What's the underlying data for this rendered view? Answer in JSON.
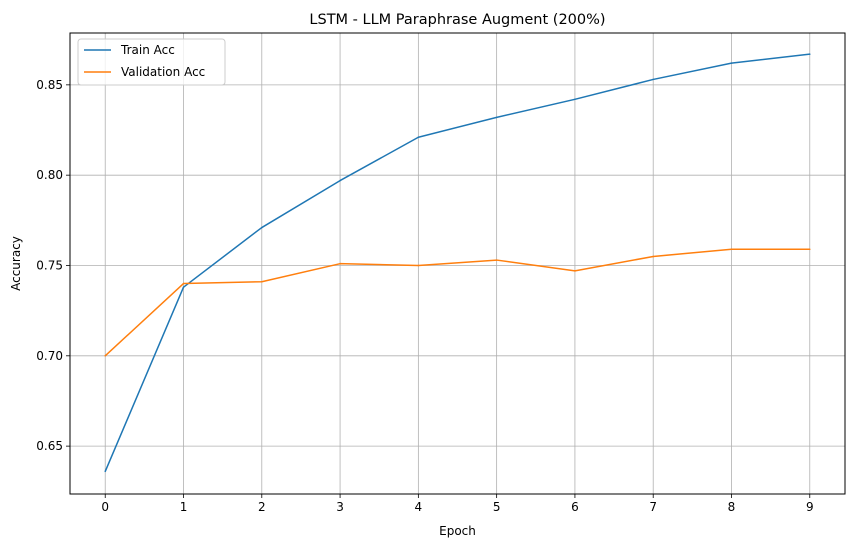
{
  "chart_data": {
    "type": "line",
    "title": "LSTM - LLM Paraphrase Augment (200%)",
    "xlabel": "Epoch",
    "ylabel": "Accuracy",
    "x": [
      0,
      1,
      2,
      3,
      4,
      5,
      6,
      7,
      8,
      9
    ],
    "xlim": [
      -0.45,
      9.45
    ],
    "ylim": [
      0.6235,
      0.8787
    ],
    "xticks": [
      "0",
      "1",
      "2",
      "3",
      "4",
      "5",
      "6",
      "7",
      "8",
      "9"
    ],
    "yticks": [
      "0.65",
      "0.70",
      "0.75",
      "0.80",
      "0.85"
    ],
    "ytick_values": [
      0.65,
      0.7,
      0.75,
      0.8,
      0.85
    ],
    "grid": true,
    "legend_position": "top-left",
    "series": [
      {
        "name": "Train Acc",
        "color": "#1f77b4",
        "values": [
          0.636,
          0.738,
          0.771,
          0.797,
          0.821,
          0.832,
          0.842,
          0.853,
          0.862,
          0.867
        ]
      },
      {
        "name": "Validation Acc",
        "color": "#ff7f0e",
        "values": [
          0.7,
          0.74,
          0.741,
          0.751,
          0.75,
          0.753,
          0.747,
          0.755,
          0.759,
          0.759
        ]
      }
    ]
  }
}
